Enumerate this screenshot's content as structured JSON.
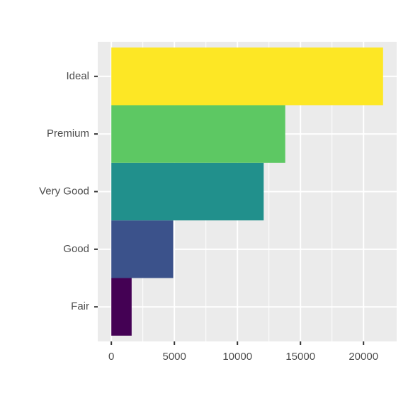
{
  "chart_data": {
    "type": "bar",
    "orientation": "horizontal",
    "categories": [
      "Fair",
      "Good",
      "Very Good",
      "Premium",
      "Ideal"
    ],
    "values": [
      1610,
      4906,
      12082,
      13791,
      21551
    ],
    "colors": [
      "#440154",
      "#3b528b",
      "#21908c",
      "#5dc863",
      "#fde725"
    ],
    "xlim": [
      -1077.55,
      22628.55
    ],
    "xticks": [
      0,
      5000,
      10000,
      15000,
      20000
    ],
    "x_minor_ticks": [
      2500,
      7500,
      12500,
      17500
    ],
    "grid": true
  }
}
